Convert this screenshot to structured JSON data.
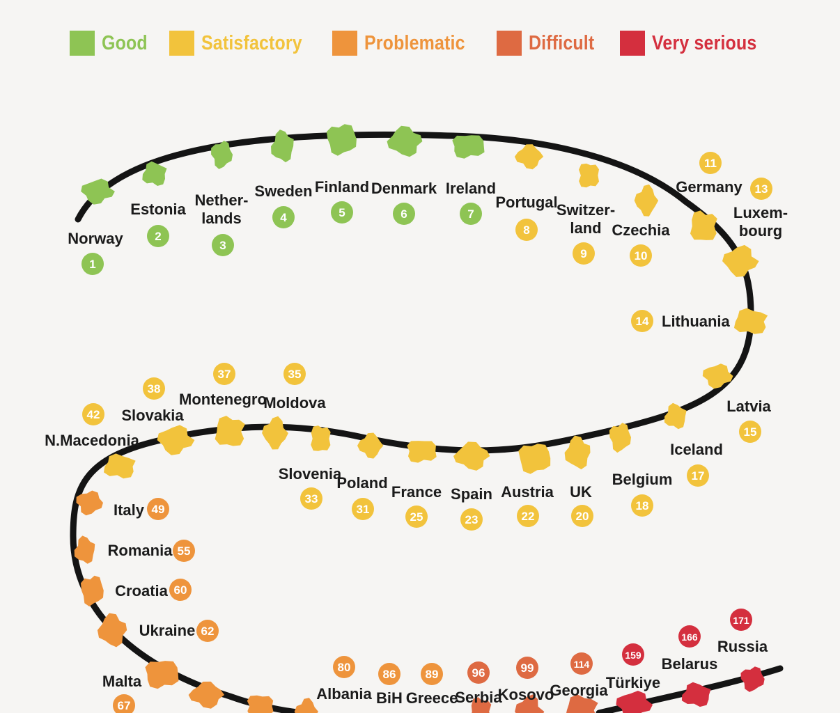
{
  "legend": [
    {
      "label": "Good",
      "color": "#8ec454"
    },
    {
      "label": "Satisfactory",
      "color": "#f2c33c"
    },
    {
      "label": "Problematic",
      "color": "#ee943c"
    },
    {
      "label": "Difficult",
      "color": "#de6a42"
    },
    {
      "label": "Very serious",
      "color": "#d42f3e"
    }
  ],
  "categories": {
    "good": "#8ec454",
    "satisfactory": "#f2c33c",
    "problematic": "#ee943c",
    "difficult": "#de6a42",
    "very_serious": "#d42f3e"
  },
  "countries": [
    {
      "name": "Norway",
      "rank": "1",
      "category": "good"
    },
    {
      "name": "Estonia",
      "rank": "2",
      "category": "good"
    },
    {
      "name": "Nether-\nlands",
      "rank": "3",
      "category": "good"
    },
    {
      "name": "Sweden",
      "rank": "4",
      "category": "good"
    },
    {
      "name": "Finland",
      "rank": "5",
      "category": "good"
    },
    {
      "name": "Denmark",
      "rank": "6",
      "category": "good"
    },
    {
      "name": "Ireland",
      "rank": "7",
      "category": "good"
    },
    {
      "name": "Portugal",
      "rank": "8",
      "category": "satisfactory"
    },
    {
      "name": "Switzer-\nland",
      "rank": "9",
      "category": "satisfactory"
    },
    {
      "name": "Czechia",
      "rank": "10",
      "category": "satisfactory"
    },
    {
      "name": "Germany",
      "rank": "11",
      "category": "satisfactory"
    },
    {
      "name": "Luxem-\nbourg",
      "rank": "13",
      "category": "satisfactory"
    },
    {
      "name": "Lithuania",
      "rank": "14",
      "category": "satisfactory"
    },
    {
      "name": "Latvia",
      "rank": "15",
      "category": "satisfactory"
    },
    {
      "name": "Iceland",
      "rank": "17",
      "category": "satisfactory"
    },
    {
      "name": "Belgium",
      "rank": "18",
      "category": "satisfactory"
    },
    {
      "name": "UK",
      "rank": "20",
      "category": "satisfactory"
    },
    {
      "name": "Austria",
      "rank": "22",
      "category": "satisfactory"
    },
    {
      "name": "Spain",
      "rank": "23",
      "category": "satisfactory"
    },
    {
      "name": "France",
      "rank": "25",
      "category": "satisfactory"
    },
    {
      "name": "Poland",
      "rank": "31",
      "category": "satisfactory"
    },
    {
      "name": "Slovenia",
      "rank": "33",
      "category": "satisfactory"
    },
    {
      "name": "Moldova",
      "rank": "35",
      "category": "satisfactory"
    },
    {
      "name": "Montenegro",
      "rank": "37",
      "category": "satisfactory"
    },
    {
      "name": "Slovakia",
      "rank": "38",
      "category": "satisfactory"
    },
    {
      "name": "N.Macedonia",
      "rank": "42",
      "category": "satisfactory"
    },
    {
      "name": "Italy",
      "rank": "49",
      "category": "problematic"
    },
    {
      "name": "Romania",
      "rank": "55",
      "category": "problematic"
    },
    {
      "name": "Croatia",
      "rank": "60",
      "category": "problematic"
    },
    {
      "name": "Ukraine",
      "rank": "62",
      "category": "problematic"
    },
    {
      "name": "Malta",
      "rank": "67",
      "category": "problematic"
    },
    {
      "name": "Albania",
      "rank": "80",
      "category": "problematic"
    },
    {
      "name": "BiH",
      "rank": "86",
      "category": "problematic"
    },
    {
      "name": "Greece",
      "rank": "89",
      "category": "problematic"
    },
    {
      "name": "Serbia",
      "rank": "96",
      "category": "difficult"
    },
    {
      "name": "Kosovo",
      "rank": "99",
      "category": "difficult"
    },
    {
      "name": "Georgia",
      "rank": "114",
      "category": "difficult"
    },
    {
      "name": "Türkiye",
      "rank": "159",
      "category": "very_serious"
    },
    {
      "name": "Belarus",
      "rank": "166",
      "category": "very_serious"
    },
    {
      "name": "Russia",
      "rank": "171",
      "category": "very_serious"
    }
  ]
}
